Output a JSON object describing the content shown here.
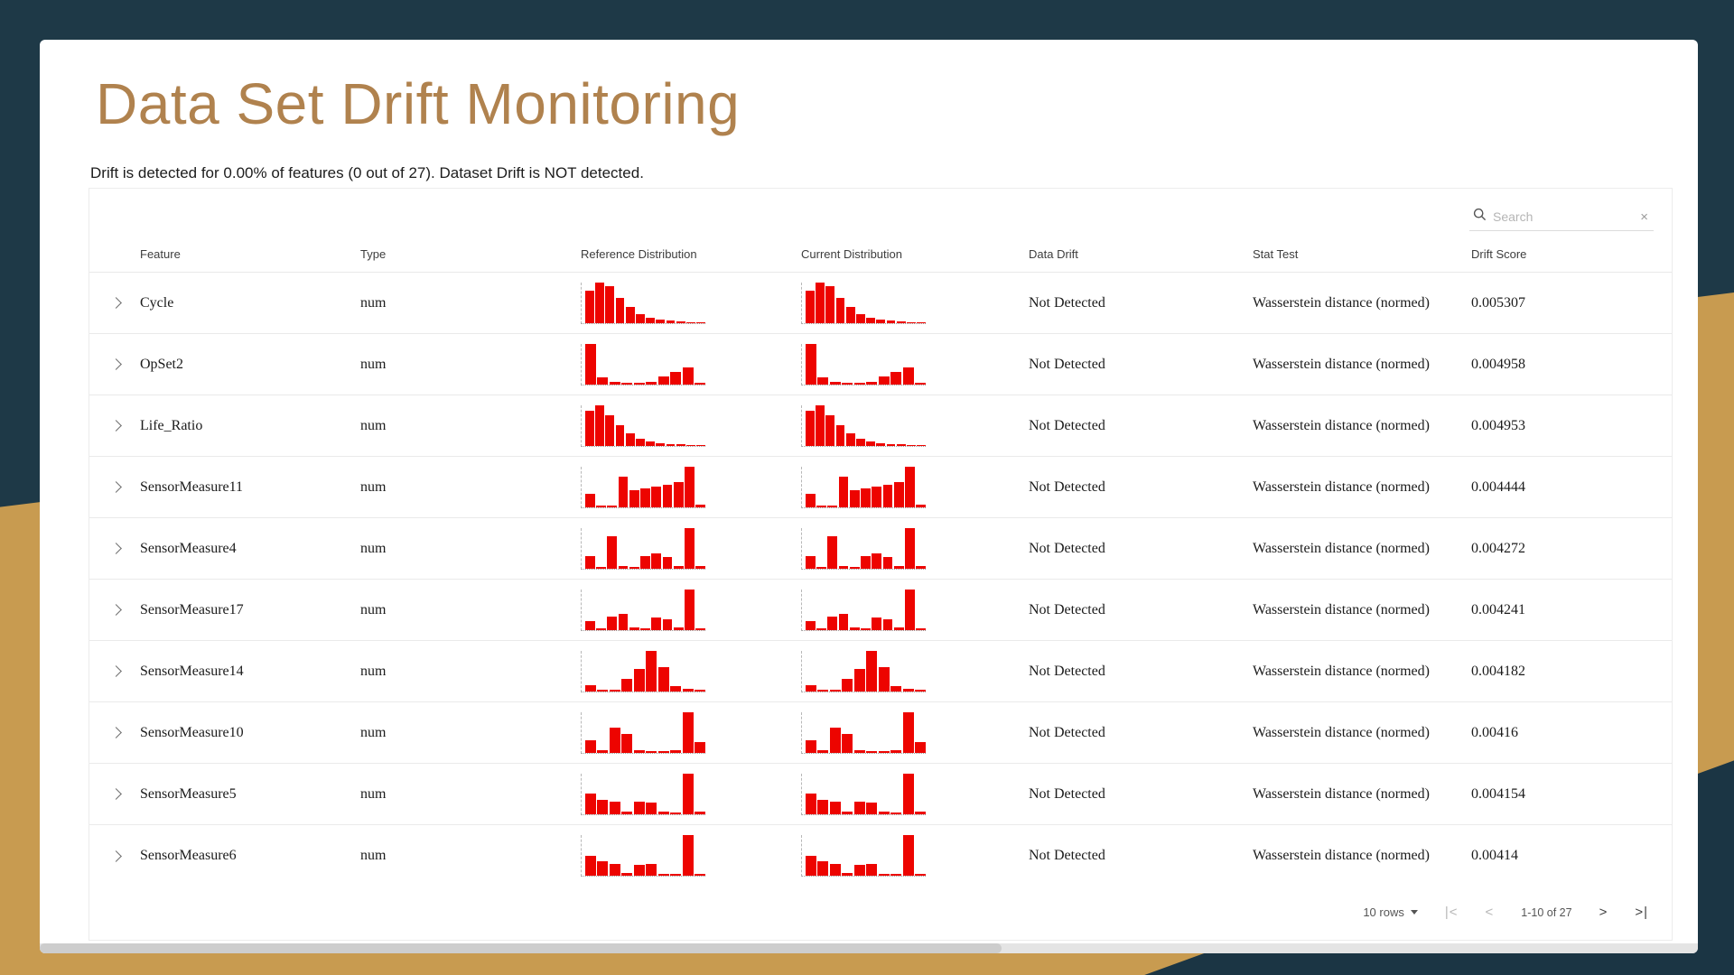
{
  "page": {
    "title": "Data Set Drift Monitoring",
    "summary": "Drift is detected for 0.00% of features (0 out of 27). Dataset Drift is NOT detected."
  },
  "search": {
    "placeholder": "Search",
    "clear_icon": "×"
  },
  "table": {
    "columns": [
      "Feature",
      "Type",
      "Reference Distribution",
      "Current Distribution",
      "Data Drift",
      "Stat Test",
      "Drift Score"
    ],
    "rows": [
      {
        "feature": "Cycle",
        "type": "num",
        "data_drift": "Not Detected",
        "stat_test": "Wasserstein distance (normed)",
        "drift_score": "0.005307",
        "ref": [
          78,
          100,
          90,
          62,
          38,
          22,
          12,
          7,
          5,
          3,
          2,
          2
        ],
        "cur": [
          78,
          100,
          90,
          62,
          38,
          22,
          12,
          7,
          5,
          3,
          2,
          2
        ]
      },
      {
        "feature": "OpSet2",
        "type": "num",
        "data_drift": "Not Detected",
        "stat_test": "Wasserstein distance (normed)",
        "drift_score": "0.004958",
        "ref": [
          100,
          16,
          5,
          4,
          4,
          6,
          20,
          30,
          42,
          4
        ],
        "cur": [
          100,
          16,
          5,
          4,
          4,
          6,
          20,
          30,
          42,
          4
        ]
      },
      {
        "feature": "Life_Ratio",
        "type": "num",
        "data_drift": "Not Detected",
        "stat_test": "Wasserstein distance (normed)",
        "drift_score": "0.004953",
        "ref": [
          85,
          100,
          75,
          50,
          30,
          17,
          10,
          6,
          4,
          3,
          2,
          2
        ],
        "cur": [
          85,
          100,
          75,
          50,
          30,
          17,
          10,
          6,
          4,
          3,
          2,
          2
        ]
      },
      {
        "feature": "SensorMeasure11",
        "type": "num",
        "data_drift": "Not Detected",
        "stat_test": "Wasserstein distance (normed)",
        "drift_score": "0.004444",
        "ref": [
          32,
          4,
          3,
          75,
          42,
          45,
          50,
          55,
          62,
          100,
          6
        ],
        "cur": [
          32,
          4,
          3,
          75,
          42,
          45,
          50,
          55,
          62,
          100,
          6
        ]
      },
      {
        "feature": "SensorMeasure4",
        "type": "num",
        "data_drift": "Not Detected",
        "stat_test": "Wasserstein distance (normed)",
        "drift_score": "0.004272",
        "ref": [
          30,
          4,
          78,
          5,
          4,
          30,
          36,
          28,
          6,
          100,
          5
        ],
        "cur": [
          30,
          4,
          78,
          5,
          4,
          30,
          36,
          28,
          6,
          100,
          5
        ]
      },
      {
        "feature": "SensorMeasure17",
        "type": "num",
        "data_drift": "Not Detected",
        "stat_test": "Wasserstein distance (normed)",
        "drift_score": "0.004241",
        "ref": [
          22,
          4,
          32,
          38,
          5,
          4,
          30,
          26,
          5,
          100,
          4
        ],
        "cur": [
          22,
          4,
          32,
          38,
          5,
          4,
          30,
          26,
          5,
          100,
          4
        ]
      },
      {
        "feature": "SensorMeasure14",
        "type": "num",
        "data_drift": "Not Detected",
        "stat_test": "Wasserstein distance (normed)",
        "drift_score": "0.004182",
        "ref": [
          14,
          4,
          4,
          30,
          55,
          100,
          60,
          12,
          5,
          3
        ],
        "cur": [
          14,
          4,
          4,
          30,
          55,
          100,
          60,
          12,
          5,
          3
        ]
      },
      {
        "feature": "SensorMeasure10",
        "type": "num",
        "data_drift": "Not Detected",
        "stat_test": "Wasserstein distance (normed)",
        "drift_score": "0.00416",
        "ref": [
          30,
          5,
          62,
          45,
          5,
          4,
          4,
          5,
          100,
          25
        ],
        "cur": [
          30,
          5,
          62,
          45,
          5,
          4,
          4,
          5,
          100,
          25
        ]
      },
      {
        "feature": "SensorMeasure5",
        "type": "num",
        "data_drift": "Not Detected",
        "stat_test": "Wasserstein distance (normed)",
        "drift_score": "0.004154",
        "ref": [
          50,
          34,
          30,
          5,
          30,
          28,
          5,
          4,
          100,
          5
        ],
        "cur": [
          50,
          34,
          30,
          5,
          30,
          28,
          5,
          4,
          100,
          5
        ]
      },
      {
        "feature": "SensorMeasure6",
        "type": "num",
        "data_drift": "Not Detected",
        "stat_test": "Wasserstein distance (normed)",
        "drift_score": "0.00414",
        "ref": [
          50,
          36,
          30,
          6,
          26,
          30,
          5,
          4,
          100,
          5
        ],
        "cur": [
          50,
          36,
          30,
          6,
          26,
          30,
          5,
          4,
          100,
          5
        ]
      }
    ]
  },
  "pagination": {
    "rows_label": "10 rows",
    "first_label": "|<",
    "prev_label": "<",
    "range_label": "1-10 of 27",
    "next_label": ">",
    "last_label": ">|"
  },
  "colors": {
    "bar": "#ed0400",
    "accent": "#b0824e",
    "bg_dark": "#1e3947",
    "bg_dark2": "#1b3544",
    "bg_gold": "#c89b50"
  }
}
